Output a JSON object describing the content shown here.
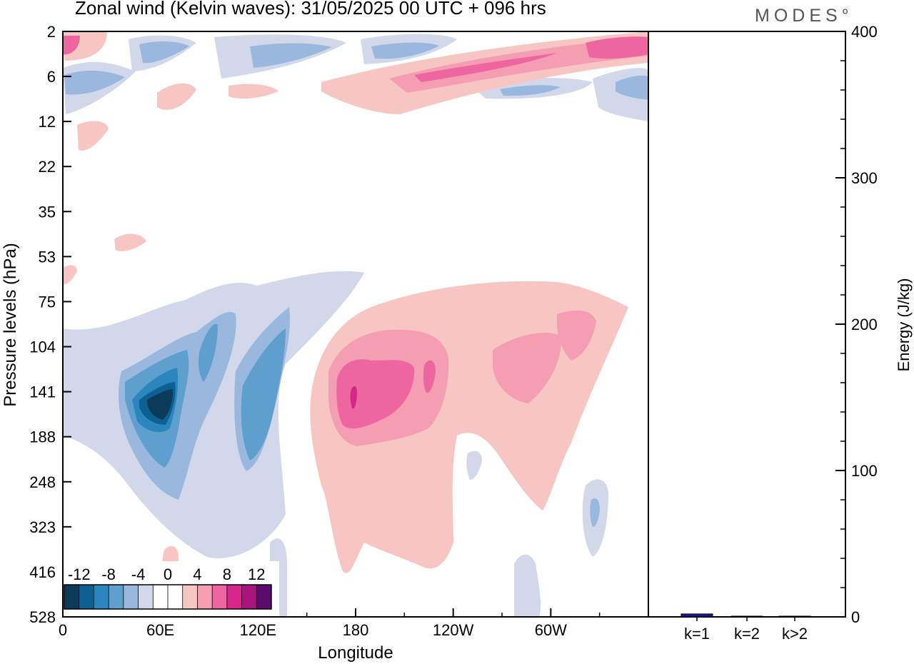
{
  "header": {
    "title": "Zonal wind (Kelvin waves):  31/05/2025  00 UTC  + 096 hrs",
    "brand": "MODES°"
  },
  "chart_data": [
    {
      "type": "heatmap",
      "title": "Zonal wind (Kelvin waves):  31/05/2025  00 UTC  + 096 hrs",
      "xlabel": "Longitude",
      "ylabel": "Pressure levels (hPa)",
      "x_ticks": [
        "0",
        "60E",
        "120E",
        "180",
        "120W",
        "60W"
      ],
      "x_tick_values": [
        0,
        60,
        120,
        180,
        240,
        300
      ],
      "xlim": [
        0,
        360
      ],
      "y_ticks": [
        "2",
        "6",
        "12",
        "22",
        "35",
        "53",
        "75",
        "104",
        "141",
        "188",
        "248",
        "323",
        "416",
        "528"
      ],
      "colorbar": {
        "labels": [
          "-12",
          "-8",
          "-4",
          "0",
          "4",
          "8",
          "12"
        ],
        "colors": [
          "#0e3a5a",
          "#0d6192",
          "#2b86be",
          "#5f9fcd",
          "#9ab8dd",
          "#d2d8ea",
          "#ffffff",
          "#ffffff",
          "#f8c6c2",
          "#f59db3",
          "#ee66a0",
          "#d8258c",
          "#a9147f",
          "#5c0a6e"
        ]
      },
      "features": [
        {
          "lon": 60,
          "level": "141",
          "value": -14
        },
        {
          "lon": 90,
          "level": "104",
          "value": -10
        },
        {
          "lon": 115,
          "level": "141",
          "value": -10
        },
        {
          "lon": 190,
          "level": "141",
          "value": 10
        },
        {
          "lon": 225,
          "level": "141",
          "value": 8
        },
        {
          "lon": 285,
          "level": "141",
          "value": 6
        },
        {
          "lon": 6,
          "level": "2",
          "value": 6
        },
        {
          "lon": 355,
          "level": "2",
          "value": 8
        },
        {
          "lon": 220,
          "level": "6",
          "value": 8
        },
        {
          "lon": 140,
          "level": "2",
          "value": -6
        },
        {
          "lon": 210,
          "level": "2",
          "value": -6
        }
      ]
    },
    {
      "type": "bar",
      "categories": [
        "k=1",
        "k=2",
        "k>2"
      ],
      "values": [
        2,
        0.4,
        0.5
      ],
      "ylabel": "Energy (J/kg)",
      "y_ticks": [
        "0",
        "100",
        "200",
        "300",
        "400"
      ],
      "ylim": [
        0,
        400
      ],
      "bar_color": "#1a1a8c"
    }
  ]
}
